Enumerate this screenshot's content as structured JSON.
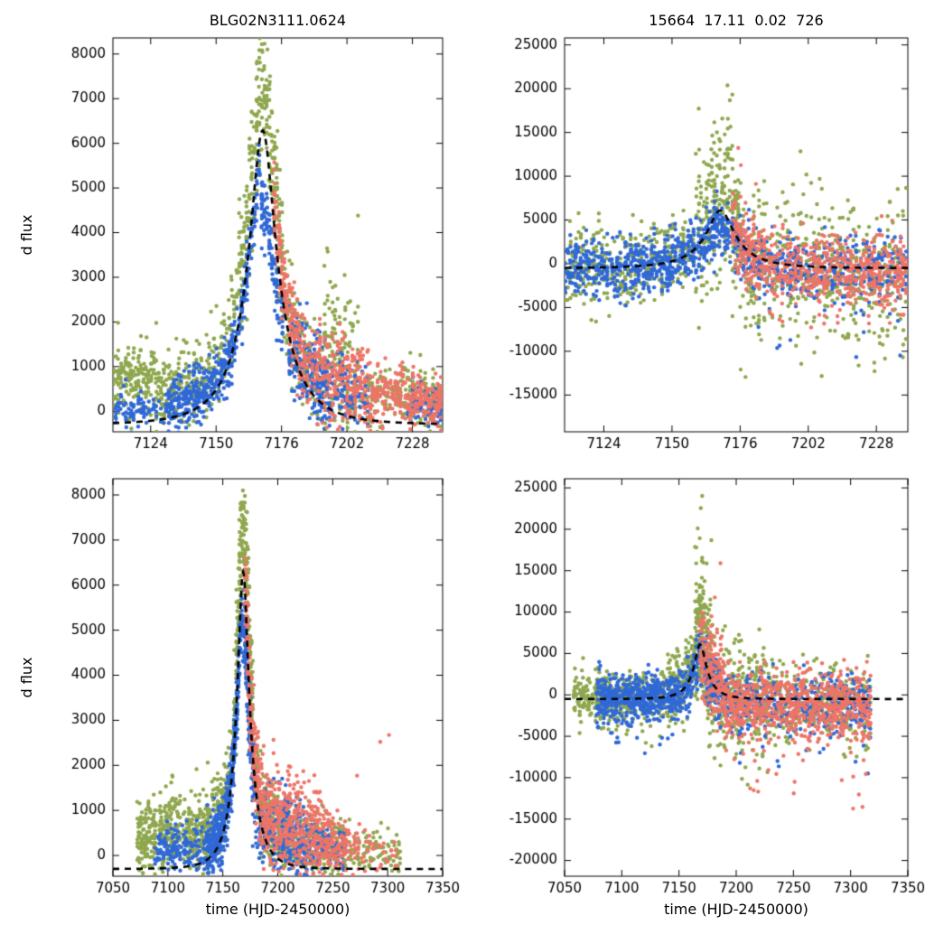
{
  "figure": {
    "background": "#ffffff",
    "colors": {
      "green": "#8fa74e",
      "blue": "#3069d6",
      "red": "#ec7568",
      "model": "#000000",
      "axis": "#000000",
      "text": "#000000"
    }
  },
  "chart_data": [
    {
      "type": "scatter",
      "title": "BLG02N3111.0624",
      "xlabel": "",
      "ylabel": "d flux",
      "xlim": [
        7109,
        7240
      ],
      "ylim": [
        -460,
        8360
      ],
      "xticks": [
        7124,
        7150,
        7176,
        7202,
        7228
      ],
      "yticks": [
        0,
        1000,
        2000,
        3000,
        4000,
        5000,
        6000,
        7000,
        8000
      ],
      "legend": "none",
      "grid": false,
      "model": {
        "type": "paczynski-dashed",
        "t0": 7168.5,
        "tE": 19,
        "u0": 0.27,
        "fs": 2350,
        "fb": -300,
        "peak_flux": 6300,
        "baseline_flux": -300
      },
      "series": [
        {
          "name": "field-1-green",
          "color": "green",
          "segments": [
            {
              "x0": 7109,
              "x1": 7126,
              "n": 170,
              "y0": 650,
              "y1": 800,
              "s": 380,
              "tu": 400,
              "td": 300
            },
            {
              "x0": 7126,
              "x1": 7159,
              "n": 260,
              "f": 1.0,
              "y0": 350,
              "y1": 450,
              "s": 480
            },
            {
              "x0": 7159,
              "x1": 7177,
              "n": 280,
              "f": 1.05,
              "y0": 350,
              "y1": 500,
              "s": 750,
              "tu": 1200
            },
            {
              "x0": 7177,
              "x1": 7194,
              "n": 170,
              "f": 0.95,
              "y0": 250,
              "s": 520,
              "tu": 800
            },
            {
              "x0": 7193,
              "x1": 7207,
              "n": 170,
              "y0": 1400,
              "y1": 700,
              "s": 950,
              "tu": 600
            },
            {
              "x0": 7207,
              "x1": 7223,
              "n": 70,
              "y0": 350,
              "s": 320
            },
            {
              "x0": 7223,
              "x1": 7240,
              "n": 130,
              "y0": 350,
              "y1": 250,
              "s": 330
            }
          ]
        },
        {
          "name": "field-2-blue",
          "color": "blue",
          "segments": [
            {
              "x0": 7110,
              "x1": 7131,
              "n": 90,
              "y0": 60,
              "s": 200
            },
            {
              "x0": 7131,
              "x1": 7168,
              "n": 430,
              "f": 0.85,
              "y0": 0,
              "s": 330
            },
            {
              "x0": 7168,
              "x1": 7177,
              "n": 120,
              "f": 0.72,
              "y0": -100,
              "s": 400
            },
            {
              "x0": 7179,
              "x1": 7196,
              "n": 230,
              "y0": 1500,
              "y1": 350,
              "s": 480
            },
            {
              "x0": 7196,
              "x1": 7211,
              "n": 110,
              "y0": 550,
              "y1": 300,
              "s": 380
            },
            {
              "x0": 7226,
              "x1": 7240,
              "n": 90,
              "y0": 200,
              "y1": 120,
              "s": 240
            }
          ]
        },
        {
          "name": "field-3-red",
          "color": "red",
          "segments": [
            {
              "x0": 7173,
              "x1": 7186,
              "n": 200,
              "f": 1.0,
              "y0": 250,
              "s": 470
            },
            {
              "x0": 7186,
              "x1": 7211,
              "n": 260,
              "y0": 950,
              "y1": 450,
              "s": 520
            },
            {
              "x0": 7211,
              "x1": 7226,
              "n": 130,
              "y0": 380,
              "s": 330
            },
            {
              "x0": 7226,
              "x1": 7240,
              "n": 150,
              "y0": 280,
              "y1": 180,
              "s": 300
            }
          ]
        }
      ]
    },
    {
      "type": "scatter",
      "title": "15664  17.11  0.02  726",
      "xlabel": "",
      "ylabel": "",
      "xlim": [
        7109,
        7240
      ],
      "ylim": [
        -19200,
        25800
      ],
      "xticks": [
        7124,
        7150,
        7176,
        7202,
        7228
      ],
      "yticks": [
        -15000,
        -10000,
        -5000,
        0,
        5000,
        10000,
        15000,
        20000,
        25000
      ],
      "legend": "none",
      "grid": false,
      "model": {
        "type": "paczynski-dashed",
        "t0": 7168.5,
        "tE": 19,
        "u0": 0.27,
        "fs": 2350,
        "fb": -500,
        "peak_flux": 6300,
        "baseline_flux": -500
      },
      "series": [
        {
          "name": "field-1-green",
          "color": "green",
          "segments": [
            {
              "x0": 7109,
              "x1": 7128,
              "n": 130,
              "y0": -200,
              "s": 2400,
              "td": 13000,
              "tp": 0.04
            },
            {
              "x0": 7128,
              "x1": 7159,
              "n": 210,
              "f": 1.0,
              "y0": 0,
              "s": 2100,
              "tu": 4000
            },
            {
              "x0": 7159,
              "x1": 7177,
              "n": 240,
              "f": 1.1,
              "y0": 500,
              "s": 4200,
              "tu": 14000,
              "tp": 0.08
            },
            {
              "x0": 7177,
              "x1": 7212,
              "n": 260,
              "y0": 0,
              "y1": -800,
              "s": 4300,
              "td": 6000,
              "tu": 5000
            },
            {
              "x0": 7212,
              "x1": 7240,
              "n": 210,
              "y0": -600,
              "y1": -1400,
              "s": 3800,
              "td": 12000,
              "tp": 0.05
            }
          ]
        },
        {
          "name": "field-2-blue",
          "color": "blue",
          "segments": [
            {
              "x0": 7109,
              "x1": 7168,
              "n": 620,
              "f": 0.85,
              "y0": -300,
              "s": 1500,
              "td": 4000,
              "tp": 0.12
            },
            {
              "x0": 7168,
              "x1": 7180,
              "n": 110,
              "f": 0.7,
              "y0": -200,
              "s": 1600
            },
            {
              "x0": 7180,
              "x1": 7240,
              "n": 380,
              "y0": -400,
              "y1": -700,
              "s": 1800,
              "td": 11000,
              "tp": 0.06
            }
          ]
        },
        {
          "name": "field-3-red",
          "color": "red",
          "segments": [
            {
              "x0": 7173,
              "x1": 7186,
              "n": 170,
              "f": 0.8,
              "y0": 0,
              "s": 2200,
              "tu": 11000,
              "tp": 0.05
            },
            {
              "x0": 7186,
              "x1": 7240,
              "n": 520,
              "y0": -500,
              "y1": -800,
              "s": 1900,
              "td": 7000,
              "tp": 0.07
            }
          ]
        }
      ]
    },
    {
      "type": "scatter",
      "title": "",
      "xlabel": "time (HJD-2450000)",
      "ylabel": "d flux",
      "xlim": [
        7050,
        7350
      ],
      "ylim": [
        -460,
        8360
      ],
      "xticks": [
        7050,
        7100,
        7150,
        7200,
        7250,
        7300,
        7350
      ],
      "yticks": [
        0,
        1000,
        2000,
        3000,
        4000,
        5000,
        6000,
        7000,
        8000
      ],
      "legend": "none",
      "grid": false,
      "model": {
        "type": "paczynski-dashed",
        "t0": 7168.5,
        "tE": 19,
        "u0": 0.27,
        "fs": 2350,
        "fb": -300,
        "peak_flux": 6300,
        "baseline_flux": -300
      },
      "series": [
        {
          "name": "field-1-green",
          "color": "green",
          "segments": [
            {
              "x0": 7072,
              "x1": 7090,
              "n": 130,
              "y0": 350,
              "y1": 500,
              "s": 380,
              "tu": 400
            },
            {
              "x0": 7092,
              "x1": 7112,
              "n": 150,
              "y0": 550,
              "y1": 650,
              "s": 430,
              "tu": 500
            },
            {
              "x0": 7114,
              "x1": 7132,
              "n": 120,
              "y0": 400,
              "y1": 500,
              "s": 420
            },
            {
              "x0": 7132,
              "x1": 7162,
              "n": 190,
              "f": 1.0,
              "y0": 350,
              "s": 470
            },
            {
              "x0": 7162,
              "x1": 7178,
              "n": 260,
              "f": 1.05,
              "y0": 400,
              "s": 760,
              "tu": 1100
            },
            {
              "x0": 7178,
              "x1": 7198,
              "n": 150,
              "f": 0.9,
              "y0": 300,
              "s": 520
            },
            {
              "x0": 7198,
              "x1": 7262,
              "n": 260,
              "y0": 350,
              "y1": 120,
              "s": 360,
              "tu": 600
            },
            {
              "x0": 7262,
              "x1": 7312,
              "n": 90,
              "y0": 120,
              "s": 240,
              "tu": 6500,
              "tp": 0.012
            }
          ]
        },
        {
          "name": "field-2-blue",
          "color": "blue",
          "segments": [
            {
              "x0": 7088,
              "x1": 7136,
              "n": 160,
              "y0": 120,
              "y1": 220,
              "s": 260,
              "tu": 1800,
              "tp": 0.01
            },
            {
              "x0": 7136,
              "x1": 7168,
              "n": 430,
              "f": 0.85,
              "y0": 0,
              "s": 340
            },
            {
              "x0": 7168,
              "x1": 7180,
              "n": 150,
              "f": 0.78,
              "y0": -100,
              "s": 420
            },
            {
              "x0": 7180,
              "x1": 7232,
              "n": 300,
              "y0": 850,
              "y1": 250,
              "s": 460
            },
            {
              "x0": 7232,
              "x1": 7262,
              "n": 100,
              "y0": 220,
              "y1": 120,
              "s": 260
            }
          ]
        },
        {
          "name": "field-3-red",
          "color": "red",
          "segments": [
            {
              "x0": 7170,
              "x1": 7186,
              "n": 190,
              "f": 0.95,
              "y0": 300,
              "s": 520,
              "tu": 900
            },
            {
              "x0": 7186,
              "x1": 7242,
              "n": 430,
              "y0": 950,
              "y1": 350,
              "s": 540
            },
            {
              "x0": 7242,
              "x1": 7265,
              "n": 110,
              "y0": 320,
              "s": 300
            },
            {
              "x0": 7265,
              "x1": 7310,
              "n": 60,
              "y0": 160,
              "s": 240,
              "tu": 2600,
              "tp": 0.02
            }
          ]
        }
      ]
    },
    {
      "type": "scatter",
      "title": "",
      "xlabel": "time (HJD-2450000)",
      "ylabel": "",
      "xlim": [
        7050,
        7350
      ],
      "ylim": [
        -21900,
        26100
      ],
      "xticks": [
        7050,
        7100,
        7150,
        7200,
        7250,
        7300,
        7350
      ],
      "yticks": [
        -20000,
        -15000,
        -10000,
        -5000,
        0,
        5000,
        10000,
        15000,
        20000,
        25000
      ],
      "legend": "none",
      "grid": false,
      "model": {
        "type": "paczynski-dashed",
        "t0": 7168.5,
        "tE": 19,
        "u0": 0.27,
        "fs": 2350,
        "fb": -500,
        "peak_flux": 6300,
        "baseline_flux": -500
      },
      "series": [
        {
          "name": "field-1-green",
          "color": "green",
          "segments": [
            {
              "x0": 7058,
              "x1": 7132,
              "n": 380,
              "y0": -300,
              "s": 1500,
              "td": 5000,
              "tp": 0.05
            },
            {
              "x0": 7132,
              "x1": 7164,
              "n": 200,
              "f": 1.0,
              "y0": 0,
              "s": 1900,
              "tu": 3000
            },
            {
              "x0": 7164,
              "x1": 7180,
              "n": 230,
              "f": 1.1,
              "y0": 500,
              "s": 4000,
              "tu": 14000,
              "tp": 0.08
            },
            {
              "x0": 7180,
              "x1": 7232,
              "n": 260,
              "y0": -500,
              "s": 3300,
              "td": 9000,
              "tu": 5000,
              "tp": 0.06
            },
            {
              "x0": 7232,
              "x1": 7318,
              "n": 260,
              "y0": -800,
              "y1": -1300,
              "s": 2400,
              "td": 6000,
              "tp": 0.05
            }
          ]
        },
        {
          "name": "field-2-blue",
          "color": "blue",
          "segments": [
            {
              "x0": 7078,
              "x1": 7164,
              "n": 600,
              "f": 0.85,
              "y0": -300,
              "s": 1350,
              "td": 4500,
              "tp": 0.1
            },
            {
              "x0": 7164,
              "x1": 7185,
              "n": 150,
              "f": 0.75,
              "y0": 0,
              "s": 1900
            },
            {
              "x0": 7185,
              "x1": 7318,
              "n": 420,
              "y0": -700,
              "y1": -1100,
              "s": 1800,
              "td": 9000,
              "tp": 0.06
            }
          ]
        },
        {
          "name": "field-3-red",
          "color": "red",
          "segments": [
            {
              "x0": 7168,
              "x1": 7190,
              "n": 190,
              "f": 0.9,
              "y0": 500,
              "s": 2400,
              "tu": 12000,
              "tp": 0.04
            },
            {
              "x0": 7190,
              "x1": 7318,
              "n": 760,
              "y0": -1000,
              "y1": -1600,
              "s": 2000,
              "td": 10000,
              "tp": 0.06
            }
          ]
        }
      ]
    }
  ]
}
